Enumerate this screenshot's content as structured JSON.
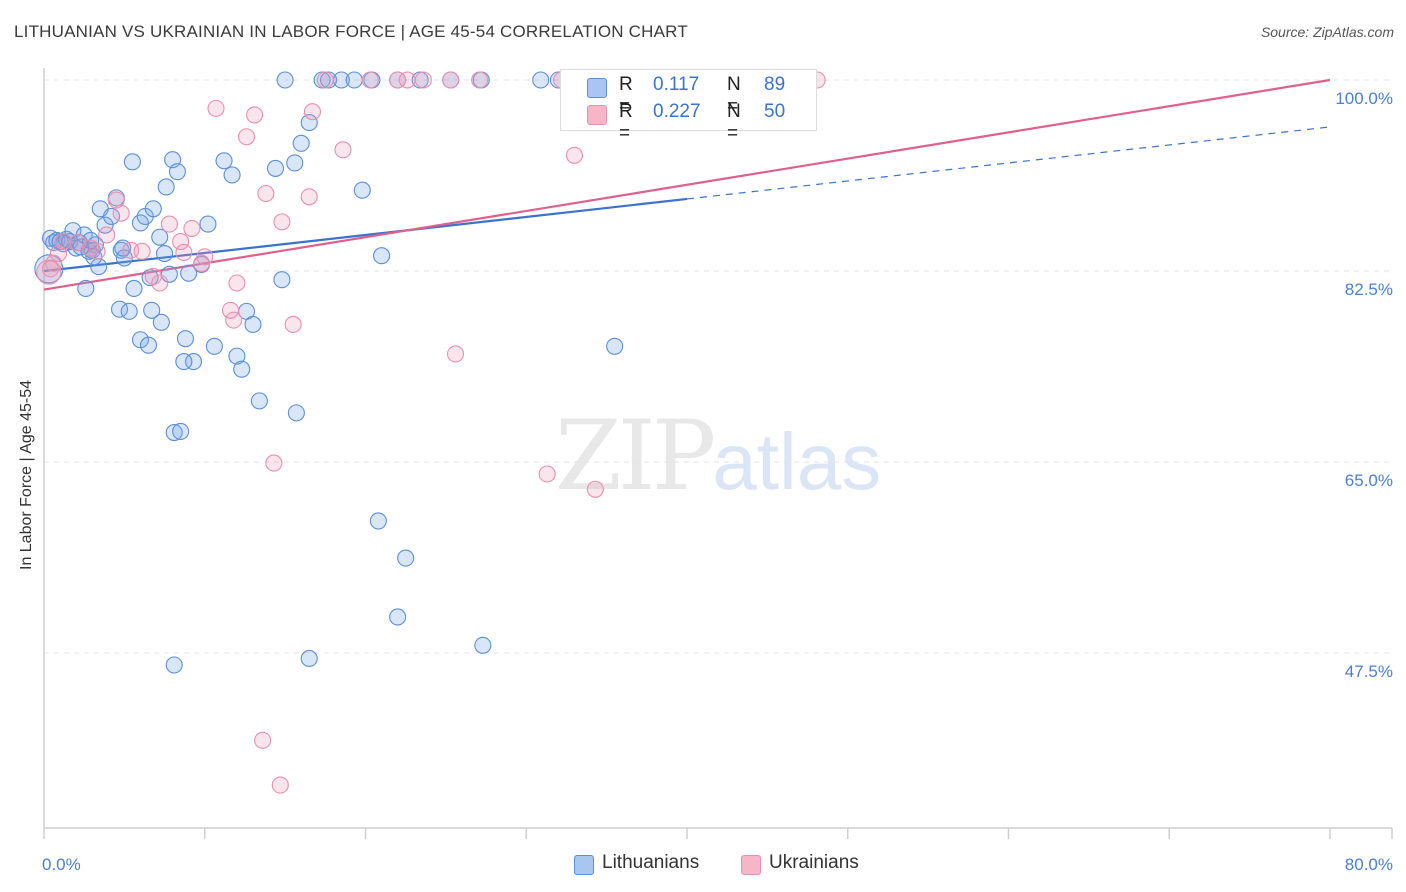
{
  "header": {
    "title": "LITHUANIAN VS UKRAINIAN IN LABOR FORCE | AGE 45-54 CORRELATION CHART",
    "source": "Source: ZipAtlas.com"
  },
  "watermark": {
    "zip": "ZIP",
    "atlas": "atlas"
  },
  "legend_top": {
    "rows": [
      {
        "r_label": "R =",
        "r_value": "0.117",
        "n_label": "N =",
        "n_value": "89",
        "color": "#a8c6ef"
      },
      {
        "r_label": "R =",
        "r_value": "0.227",
        "n_label": "N =",
        "n_value": "50",
        "color": "#f5b6c8"
      }
    ]
  },
  "legend_bottom": {
    "items": [
      {
        "label": "Lithuanians",
        "color": "#a8c6ef"
      },
      {
        "label": "Ukrainians",
        "color": "#f5b6c8"
      }
    ]
  },
  "colors": {
    "blue_fill": "rgba(120,165,230,0.28)",
    "blue_stroke": "#5b8fd8",
    "blue_line": "#3a72d0",
    "pink_fill": "rgba(240,150,180,0.25)",
    "pink_stroke": "#ea8fae",
    "pink_line": "#e0608c",
    "grid": "#e3e3e3",
    "axis": "#cfcfcf",
    "tick_text": "#4a7fd4"
  },
  "chart_data": {
    "type": "scatter",
    "title": "LITHUANIAN VS UKRAINIAN IN LABOR FORCE | AGE 45-54 CORRELATION CHART",
    "xlabel": "",
    "ylabel": "In Labor Force | Age 45-54",
    "xlim": [
      0,
      80
    ],
    "ylim": [
      32.5,
      100
    ],
    "x_tick_labels": [
      "0.0%",
      "80.0%"
    ],
    "y_ticks": [
      {
        "value": 47.5,
        "label": "47.5%"
      },
      {
        "value": 65.0,
        "label": "65.0%"
      },
      {
        "value": 82.5,
        "label": "82.5%"
      },
      {
        "value": 100.0,
        "label": "100.0%"
      }
    ],
    "series": [
      {
        "name": "Lithuanians",
        "R": 0.117,
        "N": 89,
        "trend": {
          "x0": 0,
          "y0": 82.5,
          "x1": 40,
          "y1": 89.1,
          "dash_to_x": 80,
          "dash_to_y": 95.7
        },
        "points": [
          [
            0.4,
            85.5
          ],
          [
            0.6,
            85.1
          ],
          [
            0.8,
            85.3
          ],
          [
            1.0,
            85.2
          ],
          [
            1.2,
            85.0
          ],
          [
            1.4,
            85.4
          ],
          [
            1.6,
            85.2
          ],
          [
            1.8,
            86.2
          ],
          [
            2.0,
            84.6
          ],
          [
            2.2,
            85.1
          ],
          [
            2.5,
            85.8
          ],
          [
            2.8,
            84.3
          ],
          [
            3.0,
            84.4
          ],
          [
            3.2,
            84.9
          ],
          [
            3.5,
            88.2
          ],
          [
            3.8,
            86.7
          ],
          [
            4.2,
            87.5
          ],
          [
            4.5,
            89.2
          ],
          [
            4.8,
            84.4
          ],
          [
            5.0,
            83.7
          ],
          [
            5.5,
            92.5
          ],
          [
            6.0,
            86.9
          ],
          [
            6.3,
            87.5
          ],
          [
            6.8,
            88.2
          ],
          [
            7.2,
            85.6
          ],
          [
            7.6,
            90.2
          ],
          [
            8.0,
            92.7
          ],
          [
            8.3,
            91.6
          ],
          [
            9.0,
            82.3
          ],
          [
            10.2,
            86.8
          ],
          [
            2.6,
            80.9
          ],
          [
            3.4,
            82.9
          ],
          [
            4.7,
            79.0
          ],
          [
            5.3,
            78.8
          ],
          [
            5.6,
            80.9
          ],
          [
            6.0,
            76.2
          ],
          [
            6.5,
            75.7
          ],
          [
            6.7,
            78.9
          ],
          [
            7.3,
            77.8
          ],
          [
            8.8,
            76.3
          ],
          [
            9.3,
            74.2
          ],
          [
            8.7,
            74.2
          ],
          [
            10.6,
            75.6
          ],
          [
            12.0,
            74.7
          ],
          [
            12.3,
            73.5
          ],
          [
            12.6,
            78.8
          ],
          [
            13.0,
            77.6
          ],
          [
            13.4,
            70.6
          ],
          [
            14.4,
            91.9
          ],
          [
            14.8,
            81.7
          ],
          [
            15.6,
            92.4
          ],
          [
            15.7,
            69.5
          ],
          [
            16.0,
            94.2
          ],
          [
            16.5,
            96.1
          ],
          [
            19.8,
            89.9
          ],
          [
            21.0,
            83.9
          ],
          [
            15.0,
            100
          ],
          [
            17.3,
            100
          ],
          [
            17.7,
            100
          ],
          [
            18.5,
            100
          ],
          [
            19.3,
            100
          ],
          [
            20.4,
            100
          ],
          [
            22.0,
            100
          ],
          [
            23.4,
            100
          ],
          [
            25.3,
            100
          ],
          [
            27.2,
            100
          ],
          [
            30.9,
            100
          ],
          [
            32.0,
            100
          ],
          [
            34.2,
            100
          ],
          [
            35.8,
            100
          ],
          [
            8.1,
            67.7
          ],
          [
            8.5,
            67.8
          ],
          [
            20.8,
            59.6
          ],
          [
            22.5,
            56.2
          ],
          [
            22.0,
            50.8
          ],
          [
            27.3,
            48.2
          ],
          [
            16.5,
            47.0
          ],
          [
            8.1,
            46.4
          ],
          [
            35.5,
            75.6
          ],
          [
            11.7,
            91.3
          ],
          [
            11.2,
            92.6
          ],
          [
            9.8,
            83.1
          ],
          [
            7.8,
            82.2
          ],
          [
            7.5,
            84.1
          ],
          [
            6.6,
            81.9
          ],
          [
            4.9,
            84.6
          ],
          [
            2.3,
            84.7
          ],
          [
            3.1,
            83.8
          ],
          [
            2.9,
            85.3
          ]
        ]
      },
      {
        "name": "Ukrainians",
        "R": 0.227,
        "N": 50,
        "trend": {
          "x0": 0,
          "y0": 80.8,
          "x1": 80,
          "y1": 100.0
        },
        "points": [
          [
            0.4,
            82.7
          ],
          [
            0.6,
            83.2
          ],
          [
            0.9,
            84.1
          ],
          [
            1.2,
            85.2
          ],
          [
            2.1,
            85.1
          ],
          [
            2.9,
            84.6
          ],
          [
            3.3,
            84.3
          ],
          [
            3.9,
            85.8
          ],
          [
            4.5,
            89.0
          ],
          [
            4.8,
            87.8
          ],
          [
            5.4,
            84.4
          ],
          [
            6.1,
            84.3
          ],
          [
            6.8,
            82.0
          ],
          [
            7.2,
            81.4
          ],
          [
            7.8,
            86.8
          ],
          [
            8.5,
            85.2
          ],
          [
            8.7,
            84.2
          ],
          [
            9.2,
            86.4
          ],
          [
            9.8,
            83.2
          ],
          [
            10.0,
            83.8
          ],
          [
            10.7,
            97.4
          ],
          [
            11.6,
            78.9
          ],
          [
            11.8,
            78.0
          ],
          [
            12.0,
            81.4
          ],
          [
            12.6,
            94.8
          ],
          [
            13.1,
            96.8
          ],
          [
            13.8,
            89.6
          ],
          [
            14.8,
            87.0
          ],
          [
            15.5,
            77.6
          ],
          [
            16.7,
            97.1
          ],
          [
            16.5,
            89.3
          ],
          [
            18.6,
            93.6
          ],
          [
            20.3,
            100
          ],
          [
            22.0,
            100
          ],
          [
            23.6,
            100
          ],
          [
            25.3,
            100
          ],
          [
            27.1,
            100
          ],
          [
            32.2,
            100
          ],
          [
            38.7,
            100
          ],
          [
            40.6,
            100
          ],
          [
            48.1,
            100
          ],
          [
            17.5,
            100
          ],
          [
            22.6,
            100
          ],
          [
            33.0,
            93.1
          ],
          [
            25.6,
            74.9
          ],
          [
            31.3,
            63.9
          ],
          [
            34.3,
            62.5
          ],
          [
            14.3,
            64.9
          ],
          [
            13.6,
            39.5
          ],
          [
            14.7,
            35.4
          ]
        ]
      }
    ]
  }
}
